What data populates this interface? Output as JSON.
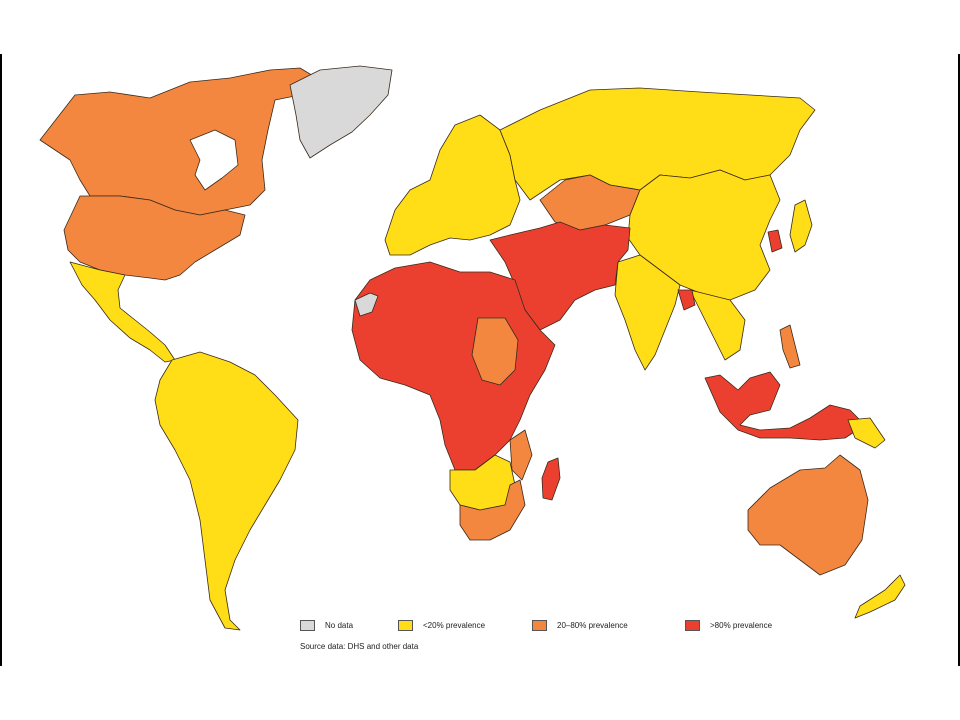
{
  "legend": {
    "items": [
      {
        "label": "No data",
        "color": "#d9d9d9"
      },
      {
        "label": "<20% prevalence",
        "color": "#ffde17"
      },
      {
        "label": "20–80% prevalence",
        "color": "#f48740"
      },
      {
        "label": ">80% prevalence",
        "color": "#eb4030"
      }
    ]
  },
  "source": "Source data: DHS and other data",
  "map": {
    "outline_color": "#3a2a1a",
    "regions": {
      "no_data": [
        "Greenland",
        "Western Sahara"
      ],
      "under_20": [
        "Mexico",
        "Central America",
        "South America",
        "Europe",
        "Russia",
        "China",
        "Mongolia",
        "India",
        "Southeast Asia",
        "Japan",
        "Southern Africa",
        "New Zealand",
        "Papua New Guinea"
      ],
      "between_20_80": [
        "Canada",
        "United States",
        "Kazakhstan",
        "Sudan",
        "Mozambique",
        "South Africa",
        "Australia",
        "Philippines"
      ],
      "over_80": [
        "North Africa",
        "Sub-Saharan Africa",
        "Middle East",
        "Iran",
        "Afghanistan",
        "Pakistan",
        "Indonesia",
        "Bangladesh",
        "Madagascar",
        "Korea"
      ]
    }
  }
}
